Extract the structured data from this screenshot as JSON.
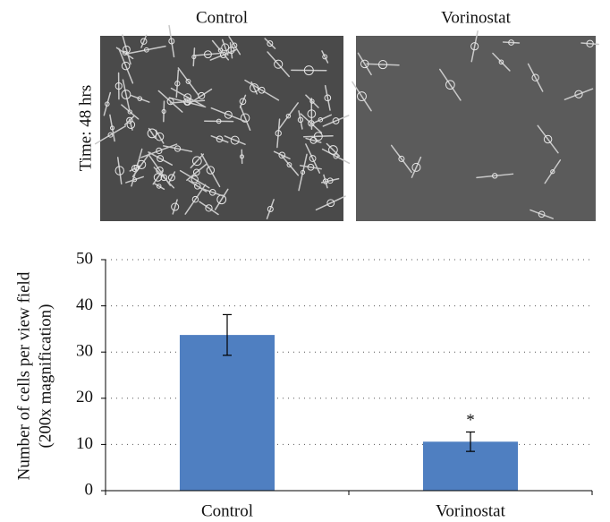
{
  "images": {
    "row_label": "Time: 48 hrs",
    "panels": [
      "Control",
      "Vorinostat"
    ]
  },
  "chart_data": {
    "type": "bar",
    "ylabel": [
      "Number of cells per view field",
      "(200x magnification)"
    ],
    "categories": [
      "Control",
      "Vorinostat"
    ],
    "values": [
      33.7,
      10.6
    ],
    "errors": [
      4.4,
      2.1
    ],
    "color": "#4f7fc1",
    "annotations": [
      {
        "category": "Vorinostat",
        "text": "*"
      }
    ],
    "ylim": [
      0,
      50
    ],
    "yticks": [
      0,
      10,
      20,
      30,
      40,
      50
    ],
    "grid": true
  }
}
